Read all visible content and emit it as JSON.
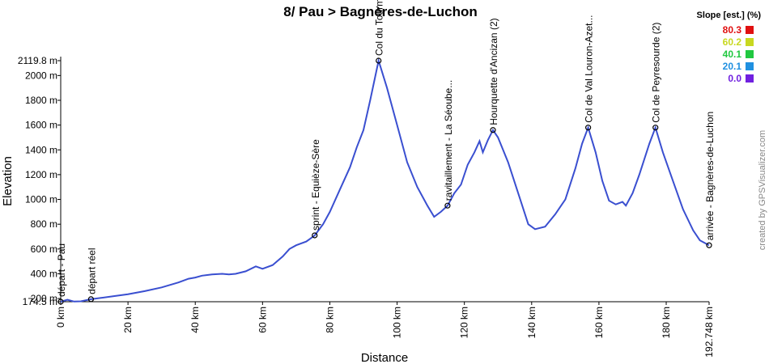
{
  "chart_data": {
    "type": "line",
    "title": "8/ Pau > Bagnères-de-Luchon",
    "xlabel": "Distance",
    "ylabel": "Elevation",
    "credit": "created by GPSVisualizer.com",
    "xlim": [
      0,
      192.748
    ],
    "ylim": [
      174.5,
      2119.8
    ],
    "xticks": [
      {
        "value": 0,
        "label": "0 km"
      },
      {
        "value": 20,
        "label": "20 km"
      },
      {
        "value": 40,
        "label": "40 km"
      },
      {
        "value": 60,
        "label": "60 km"
      },
      {
        "value": 80,
        "label": "80 km"
      },
      {
        "value": 100,
        "label": "100 km"
      },
      {
        "value": 120,
        "label": "120 km"
      },
      {
        "value": 140,
        "label": "140 km"
      },
      {
        "value": 160,
        "label": "160 km"
      },
      {
        "value": 180,
        "label": "180 km"
      },
      {
        "value": 192.748,
        "label": "192.748 km"
      }
    ],
    "yticks": [
      {
        "value": 174.5,
        "label": "174.5 m"
      },
      {
        "value": 200,
        "label": "200 m"
      },
      {
        "value": 400,
        "label": "400 m"
      },
      {
        "value": 600,
        "label": "600 m"
      },
      {
        "value": 800,
        "label": "800 m"
      },
      {
        "value": 1000,
        "label": "1000 m"
      },
      {
        "value": 1200,
        "label": "1200 m"
      },
      {
        "value": 1400,
        "label": "1400 m"
      },
      {
        "value": 1600,
        "label": "1600 m"
      },
      {
        "value": 1800,
        "label": "1800 m"
      },
      {
        "value": 2000,
        "label": "2000 m"
      },
      {
        "value": 2119.8,
        "label": "2119.8 m"
      }
    ],
    "series": [
      {
        "color": "#3a4fd0",
        "x": [
          0,
          2,
          4,
          6,
          9,
          12,
          16,
          20,
          25,
          30,
          35,
          38,
          40,
          42,
          45,
          48,
          50,
          52,
          55,
          58,
          60,
          63,
          66,
          68,
          70,
          73,
          75.5,
          78,
          80,
          83,
          86,
          88,
          90,
          92,
          94.5,
          97,
          100,
          103,
          106,
          109,
          111,
          113,
          115,
          117,
          119,
          121,
          123,
          124.5,
          125.5,
          127,
          128.5,
          130,
          133,
          136,
          139,
          141,
          144,
          147,
          150,
          153,
          155,
          156.8,
          159,
          161,
          163,
          165,
          167,
          168,
          170,
          172,
          175,
          176.8,
          179,
          182,
          185,
          188,
          190,
          192.748
        ],
        "values": [
          174.5,
          190,
          176,
          178,
          195,
          205,
          220,
          235,
          260,
          290,
          330,
          360,
          370,
          385,
          395,
          400,
          395,
          400,
          420,
          460,
          440,
          470,
          540,
          600,
          630,
          660,
          710,
          800,
          900,
          1080,
          1260,
          1420,
          1560,
          1800,
          2119.8,
          1900,
          1600,
          1300,
          1100,
          950,
          860,
          900,
          950,
          1050,
          1120,
          1280,
          1380,
          1470,
          1380,
          1480,
          1560,
          1500,
          1300,
          1050,
          800,
          760,
          780,
          880,
          1000,
          1250,
          1450,
          1580,
          1380,
          1150,
          990,
          960,
          980,
          950,
          1050,
          1200,
          1450,
          1580,
          1380,
          1150,
          920,
          750,
          670,
          630
        ]
      }
    ],
    "waypoints": [
      {
        "label": "départ - Pau",
        "x": 0,
        "y": 174.5
      },
      {
        "label": "départ réel",
        "x": 9,
        "y": 195
      },
      {
        "label": "sprint - Equièze-Sère",
        "x": 75.5,
        "y": 710
      },
      {
        "label": "Col du Tourmalet",
        "x": 94.5,
        "y": 2119.8
      },
      {
        "label": "ravitaillement - La Séoube...",
        "x": 115,
        "y": 950
      },
      {
        "label": "Hourquette d'Ancizan (2)",
        "x": 128.5,
        "y": 1560
      },
      {
        "label": "Col de Val Louron-Azet...",
        "x": 156.8,
        "y": 1580
      },
      {
        "label": "Col de Peyresourde (2)",
        "x": 176.8,
        "y": 1580
      },
      {
        "label": "arrivée - Bagnères-de-Luchon",
        "x": 192.748,
        "y": 630
      }
    ],
    "legend": {
      "title": "Slope [est.] (%)",
      "items": [
        {
          "value": 80.3,
          "color": "#e01010"
        },
        {
          "value": 60.2,
          "color": "#c8d820"
        },
        {
          "value": 40.1,
          "color": "#20c840"
        },
        {
          "value": 20.1,
          "color": "#2090e0"
        },
        {
          "value": {
            "value": 0,
            "label": "0.0"
          },
          "color": "#7020e0"
        }
      ]
    }
  }
}
